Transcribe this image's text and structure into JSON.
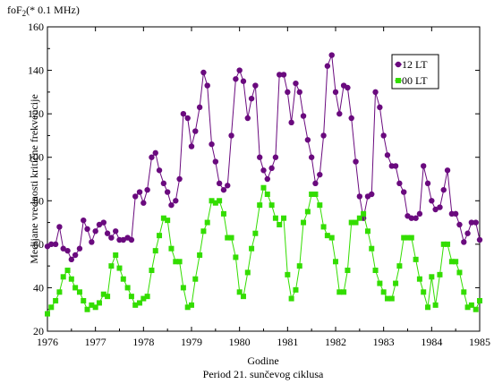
{
  "chart_data": {
    "type": "line",
    "title": "Period 21. sunčevog ciklusa",
    "unit_label": "foF2(* 0.1 MHz)",
    "unit_main": "foF",
    "unit_sub": "2",
    "unit_rest": "(* 0.1 MHz)",
    "xlabel": "Godine",
    "ylabel": "Medijane vrednosti kritične frekvencije",
    "xlim": [
      1976,
      1985
    ],
    "ylim": [
      20,
      160
    ],
    "x_ticks": [
      "1976",
      "1977",
      "1978",
      "1979",
      "1980",
      "1981",
      "1982",
      "1983",
      "1984",
      "1985"
    ],
    "y_ticks": [
      "20",
      "40",
      "60",
      "80",
      "100",
      "120",
      "140",
      "160"
    ],
    "grid": false,
    "legend_position": "top-right",
    "series": [
      {
        "name": "12 LT",
        "color": "#6a0a7e",
        "marker": "circle",
        "x": [
          1976.0,
          1976.08,
          1976.17,
          1976.25,
          1976.33,
          1976.42,
          1976.5,
          1976.58,
          1976.67,
          1976.75,
          1976.83,
          1976.92,
          1977.0,
          1977.08,
          1977.17,
          1977.25,
          1977.33,
          1977.42,
          1977.5,
          1977.58,
          1977.67,
          1977.75,
          1977.83,
          1977.92,
          1978.0,
          1978.08,
          1978.17,
          1978.25,
          1978.33,
          1978.42,
          1978.5,
          1978.58,
          1978.67,
          1978.75,
          1978.83,
          1978.92,
          1979.0,
          1979.08,
          1979.17,
          1979.25,
          1979.33,
          1979.42,
          1979.5,
          1979.58,
          1979.67,
          1979.75,
          1979.83,
          1979.92,
          1980.0,
          1980.08,
          1980.17,
          1980.25,
          1980.33,
          1980.42,
          1980.5,
          1980.58,
          1980.67,
          1980.75,
          1980.83,
          1980.92,
          1981.0,
          1981.08,
          1981.17,
          1981.25,
          1981.33,
          1981.42,
          1981.5,
          1981.58,
          1981.67,
          1981.75,
          1981.83,
          1981.92,
          1982.0,
          1982.08,
          1982.17,
          1982.25,
          1982.33,
          1982.42,
          1982.5,
          1982.58,
          1982.67,
          1982.75,
          1982.83,
          1982.92,
          1983.0,
          1983.08,
          1983.17,
          1983.25,
          1983.33,
          1983.42,
          1983.5,
          1983.58,
          1983.67,
          1983.75,
          1983.83,
          1983.92,
          1984.0,
          1984.08,
          1984.17,
          1984.25,
          1984.33,
          1984.42,
          1984.5,
          1984.58,
          1984.67,
          1984.75,
          1984.83,
          1984.92,
          1985.0
        ],
        "y": [
          59,
          60,
          60,
          68,
          58,
          57,
          53,
          55,
          58,
          71,
          67,
          61,
          66,
          69,
          70,
          65,
          63,
          66,
          62,
          62,
          63,
          62,
          82,
          84,
          79,
          85,
          100,
          102,
          94,
          88,
          84,
          78,
          80,
          90,
          120,
          118,
          105,
          112,
          123,
          139,
          133,
          106,
          98,
          88,
          85,
          87,
          110,
          136,
          140,
          135,
          118,
          127,
          133,
          100,
          94,
          90,
          95,
          100,
          138,
          138,
          130,
          116,
          134,
          130,
          119,
          108,
          100,
          88,
          92,
          110,
          142,
          147,
          130,
          120,
          133,
          132,
          118,
          98,
          82,
          72,
          82,
          83,
          130,
          123,
          110,
          101,
          96,
          96,
          88,
          84,
          73,
          72,
          72,
          74,
          96,
          88,
          80,
          76,
          77,
          85,
          94,
          74,
          74,
          69,
          61,
          65,
          70,
          70,
          62
        ]
      },
      {
        "name": "00 LT",
        "color": "#33dd00",
        "marker": "square",
        "x": [
          1976.0,
          1976.08,
          1976.17,
          1976.25,
          1976.33,
          1976.42,
          1976.5,
          1976.58,
          1976.67,
          1976.75,
          1976.83,
          1976.92,
          1977.0,
          1977.08,
          1977.17,
          1977.25,
          1977.33,
          1977.42,
          1977.5,
          1977.58,
          1977.67,
          1977.75,
          1977.83,
          1977.92,
          1978.0,
          1978.08,
          1978.17,
          1978.25,
          1978.33,
          1978.42,
          1978.5,
          1978.58,
          1978.67,
          1978.75,
          1978.83,
          1978.92,
          1979.0,
          1979.08,
          1979.17,
          1979.25,
          1979.33,
          1979.42,
          1979.5,
          1979.58,
          1979.67,
          1979.75,
          1979.83,
          1979.92,
          1980.0,
          1980.08,
          1980.17,
          1980.25,
          1980.33,
          1980.42,
          1980.5,
          1980.58,
          1980.67,
          1980.75,
          1980.83,
          1980.92,
          1981.0,
          1981.08,
          1981.17,
          1981.25,
          1981.33,
          1981.42,
          1981.5,
          1981.58,
          1981.67,
          1981.75,
          1981.83,
          1981.92,
          1982.0,
          1982.08,
          1982.17,
          1982.25,
          1982.33,
          1982.42,
          1982.5,
          1982.58,
          1982.67,
          1982.75,
          1982.83,
          1982.92,
          1983.0,
          1983.08,
          1983.17,
          1983.25,
          1983.33,
          1983.42,
          1983.5,
          1983.58,
          1983.67,
          1983.75,
          1983.83,
          1983.92,
          1984.0,
          1984.08,
          1984.17,
          1984.25,
          1984.33,
          1984.42,
          1984.5,
          1984.58,
          1984.67,
          1984.75,
          1984.83,
          1984.92,
          1985.0
        ],
        "y": [
          28,
          31,
          34,
          38,
          45,
          48,
          44,
          40,
          38,
          34,
          30,
          32,
          31,
          33,
          37,
          36,
          50,
          55,
          49,
          44,
          40,
          36,
          32,
          33,
          35,
          36,
          48,
          57,
          64,
          72,
          71,
          58,
          52,
          52,
          40,
          31,
          32,
          44,
          55,
          66,
          70,
          80,
          79,
          80,
          74,
          63,
          63,
          54,
          38,
          36,
          47,
          58,
          65,
          78,
          86,
          83,
          78,
          72,
          69,
          72,
          46,
          35,
          39,
          50,
          70,
          75,
          83,
          83,
          78,
          68,
          64,
          63,
          52,
          38,
          38,
          48,
          70,
          70,
          72,
          74,
          66,
          58,
          48,
          42,
          38,
          35,
          35,
          42,
          50,
          63,
          63,
          63,
          53,
          44,
          38,
          31,
          45,
          32,
          46,
          60,
          60,
          52,
          52,
          47,
          38,
          31,
          32,
          30,
          34
        ]
      }
    ]
  }
}
